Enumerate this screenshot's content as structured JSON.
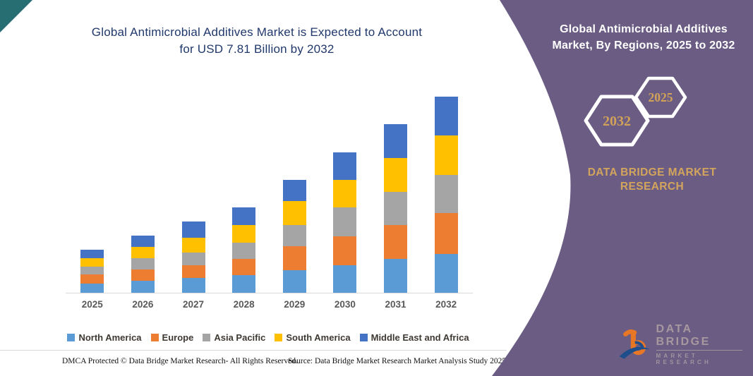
{
  "header": {
    "title_line1": "Global Antimicrobial Additives Market is Expected to Account",
    "title_line2": "for USD 7.81 Billion by 2032",
    "title_color": "#20386b"
  },
  "chart_data": {
    "type": "bar",
    "stacked": true,
    "unit": "USD Billion",
    "title": "Global Antimicrobial Additives Market is Expected to Account for USD 7.81 Billion by 2032",
    "categories": [
      "2025",
      "2026",
      "2027",
      "2028",
      "2029",
      "2030",
      "2031",
      "2032"
    ],
    "series": [
      {
        "name": "North America",
        "color": "#5B9BD5",
        "values": [
          0.37,
          0.49,
          0.58,
          0.7,
          0.91,
          1.1,
          1.36,
          1.56
        ]
      },
      {
        "name": "Europe",
        "color": "#ED7D31",
        "values": [
          0.35,
          0.45,
          0.51,
          0.65,
          0.94,
          1.14,
          1.34,
          1.62
        ]
      },
      {
        "name": "Asia Pacific",
        "color": "#A5A5A5",
        "values": [
          0.31,
          0.45,
          0.51,
          0.64,
          0.85,
          1.17,
          1.33,
          1.52
        ]
      },
      {
        "name": "South America",
        "color": "#FFC000",
        "values": [
          0.35,
          0.44,
          0.59,
          0.7,
          0.94,
          1.08,
          1.34,
          1.57
        ]
      },
      {
        "name": "Middle East and Africa",
        "color": "#4472C4",
        "values": [
          0.34,
          0.45,
          0.65,
          0.71,
          0.84,
          1.1,
          1.35,
          1.53
        ]
      }
    ],
    "totals": [
      1.72,
      2.28,
      2.84,
      3.4,
      4.48,
      5.59,
      6.72,
      7.81
    ],
    "ymax": 7.81,
    "gridlines": false,
    "legend_position": "bottom",
    "axis_label_color": "#595959"
  },
  "footer": {
    "left": "DMCA Protected © Data Bridge Market Research-  All Rights Reserved.",
    "right": "Source: Data Bridge Market Research  Market Analysis Study 2025"
  },
  "side_panel": {
    "bg_color": "#6b5c84",
    "title_line1": "Global Antimicrobial Additives",
    "title_line2": "Market, By Regions, 2025 to 2032",
    "hex_back_year": "2032",
    "hex_front_year": "2025",
    "hex_year_color": "#d2a258",
    "brand_line1": "DATA BRIDGE MARKET",
    "brand_line2": "RESEARCH",
    "brand_color": "#d3a55c",
    "logo_word": "DATA BRIDGE",
    "logo_sub": "MARKET RESEARCH",
    "logo_orange": "#e87725",
    "logo_blue": "#1f4e8c"
  },
  "decor": {
    "corner_triangle_color": "#266e72"
  }
}
